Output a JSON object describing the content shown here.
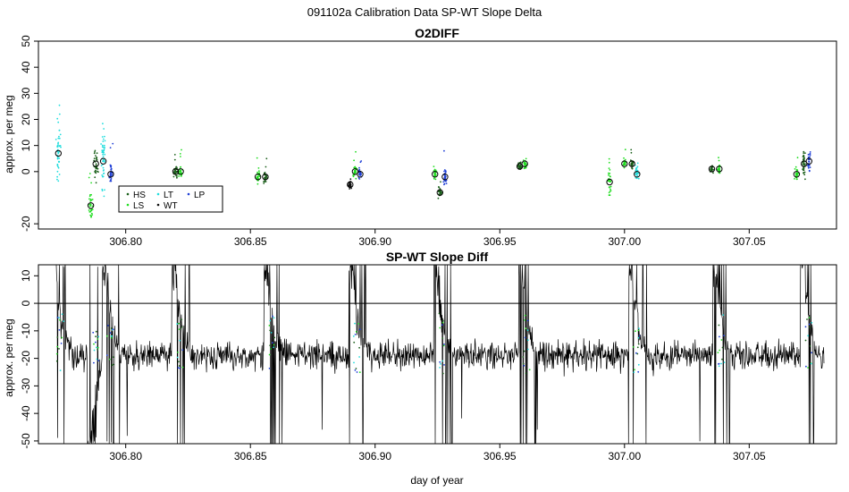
{
  "figure": {
    "title": "091102a   Calibration Data SP-WT Slope Delta",
    "xlabel": "day of year"
  },
  "colors": {
    "HS": "#1a5f1a",
    "LS": "#22dd22",
    "LT": "#22dddd",
    "WT": "#111111",
    "LP": "#1f3fd6",
    "line": "#000000"
  },
  "chart_data": [
    {
      "type": "scatter",
      "title": "O2DIFF",
      "xlabel": "",
      "ylabel": "approx. per meg",
      "xlim": [
        306.765,
        307.085
      ],
      "ylim": [
        -22,
        50
      ],
      "x_ticks": [
        306.8,
        306.85,
        306.9,
        306.95,
        307.0,
        307.05
      ],
      "x_tick_labels": [
        "306.80",
        "306.85",
        "306.90",
        "306.95",
        "307.00",
        "307.05"
      ],
      "y_ticks": [
        -20,
        0,
        10,
        20,
        30,
        40,
        50
      ],
      "y_tick_labels": [
        "-20",
        "0",
        "10",
        "20",
        "30",
        "40",
        "50"
      ],
      "legend": {
        "placement": "bottom-left",
        "entries": [
          {
            "name": "HS",
            "color_key": "HS"
          },
          {
            "name": "LS",
            "color_key": "LS"
          },
          {
            "name": "LT",
            "color_key": "LT"
          },
          {
            "name": "WT",
            "color_key": "WT"
          },
          {
            "name": "LP",
            "color_key": "LP"
          }
        ]
      },
      "clusters": [
        {
          "series": "LT",
          "x": 306.773,
          "mean": 7,
          "spread": 12
        },
        {
          "series": "LS",
          "x": 306.786,
          "mean": -13,
          "spread": 5
        },
        {
          "series": "HS",
          "x": 306.788,
          "mean": 3,
          "spread": 7
        },
        {
          "series": "LT",
          "x": 306.791,
          "mean": 4,
          "spread": 14
        },
        {
          "series": "LP",
          "x": 306.794,
          "mean": -1,
          "spread": 5
        },
        {
          "series": "HS",
          "x": 306.82,
          "mean": 0,
          "spread": 3
        },
        {
          "series": "LS",
          "x": 306.822,
          "mean": 0,
          "spread": 3
        },
        {
          "series": "LS",
          "x": 306.853,
          "mean": -2,
          "spread": 3
        },
        {
          "series": "HS",
          "x": 306.856,
          "mean": -2,
          "spread": 4
        },
        {
          "series": "WT",
          "x": 306.89,
          "mean": -5,
          "spread": 2
        },
        {
          "series": "LS",
          "x": 306.892,
          "mean": 0,
          "spread": 3
        },
        {
          "series": "LP",
          "x": 306.894,
          "mean": -1,
          "spread": 2
        },
        {
          "series": "LS",
          "x": 306.924,
          "mean": -1,
          "spread": 3
        },
        {
          "series": "HS",
          "x": 306.926,
          "mean": -8,
          "spread": 2
        },
        {
          "series": "LP",
          "x": 306.928,
          "mean": -2,
          "spread": 4
        },
        {
          "series": "HS",
          "x": 306.958,
          "mean": 2,
          "spread": 2
        },
        {
          "series": "LS",
          "x": 306.96,
          "mean": 3,
          "spread": 2
        },
        {
          "series": "LS",
          "x": 306.994,
          "mean": -4,
          "spread": 5
        },
        {
          "series": "LS",
          "x": 307.0,
          "mean": 3,
          "spread": 2
        },
        {
          "series": "HS",
          "x": 307.003,
          "mean": 3,
          "spread": 2
        },
        {
          "series": "LT",
          "x": 307.005,
          "mean": -1,
          "spread": 2
        },
        {
          "series": "HS",
          "x": 307.035,
          "mean": 1,
          "spread": 2
        },
        {
          "series": "LS",
          "x": 307.038,
          "mean": 1,
          "spread": 2
        },
        {
          "series": "LS",
          "x": 307.069,
          "mean": -1,
          "spread": 3
        },
        {
          "series": "HS",
          "x": 307.072,
          "mean": 3,
          "spread": 7
        },
        {
          "series": "LP",
          "x": 307.074,
          "mean": 4,
          "spread": 5
        }
      ]
    },
    {
      "type": "line",
      "title": "SP-WT Slope Diff",
      "xlabel": "day of year",
      "ylabel": "approx. per meg",
      "xlim": [
        306.765,
        307.085
      ],
      "ylim": [
        -51,
        14
      ],
      "x_ticks": [
        306.8,
        306.85,
        306.9,
        306.95,
        307.0,
        307.05
      ],
      "x_tick_labels": [
        "306.80",
        "306.85",
        "306.90",
        "306.95",
        "307.00",
        "307.05"
      ],
      "y_ticks": [
        -50,
        -40,
        -30,
        -20,
        -10,
        0,
        10
      ],
      "y_tick_labels": [
        "-50",
        "-40",
        "-30",
        "-20",
        "-10",
        "0",
        "10"
      ],
      "reference_line_y": 0,
      "x_range": [
        306.772,
        307.08
      ],
      "baseline": -19,
      "noise_amplitude": 4,
      "transients": [
        {
          "x": 306.772,
          "dir": 1
        },
        {
          "x": 306.786,
          "dir": -1
        },
        {
          "x": 306.792,
          "dir": 1
        },
        {
          "x": 306.82,
          "dir": 1
        },
        {
          "x": 306.857,
          "dir": 1
        },
        {
          "x": 306.891,
          "dir": 1
        },
        {
          "x": 306.925,
          "dir": 1
        },
        {
          "x": 306.959,
          "dir": 1
        },
        {
          "x": 307.003,
          "dir": 1
        },
        {
          "x": 307.037,
          "dir": 1
        },
        {
          "x": 307.072,
          "dir": 1
        }
      ]
    }
  ]
}
